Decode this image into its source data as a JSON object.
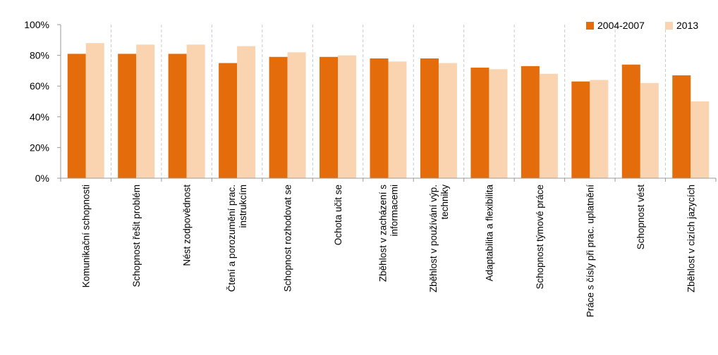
{
  "chart_data": {
    "type": "bar",
    "categories": [
      [
        "Komunikační schopnosti"
      ],
      [
        "Schopnost řešit problém"
      ],
      [
        "Nést zodpovědnost"
      ],
      [
        "Čtení a porozumění prac.",
        "instrukcím"
      ],
      [
        "Schopnost rozhodovat se"
      ],
      [
        "Ochota učit se"
      ],
      [
        "Zběhlost v zacházení s",
        "informacemi"
      ],
      [
        "Zběhlost v používání výp.",
        "techniky"
      ],
      [
        "Adaptabilita a flexibilita"
      ],
      [
        "Schopnost týmové práce"
      ],
      [
        "Práce s čísly při prac. uplatnění"
      ],
      [
        "Schopnost vést"
      ],
      [
        "Zběhlost v cizích jazycích"
      ]
    ],
    "series": [
      {
        "name": "2004-2007",
        "color": "#E46C0A",
        "values": [
          81,
          81,
          81,
          75,
          79,
          79,
          78,
          78,
          72,
          73,
          63,
          74,
          67
        ]
      },
      {
        "name": "2013",
        "color": "#FAD4B0",
        "values": [
          88,
          87,
          87,
          86,
          82,
          80,
          76,
          75,
          71,
          68,
          64,
          62,
          50
        ]
      }
    ],
    "yticks": [
      "0%",
      "20%",
      "40%",
      "60%",
      "80%",
      "100%"
    ],
    "ylim": [
      0,
      100
    ],
    "grid": "vertical dashed category separators",
    "legend": "top-right"
  }
}
